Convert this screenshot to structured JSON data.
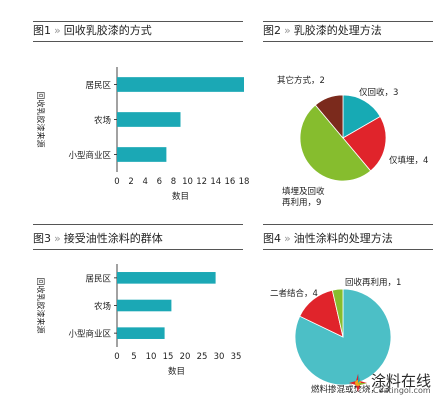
{
  "chart_data": [
    {
      "type": "bar",
      "orientation": "horizontal",
      "title_prefix": "图1",
      "title": "回收乳胶漆的方式",
      "categories": [
        "居民区",
        "农场",
        "小型商业区"
      ],
      "values": [
        18,
        9,
        7
      ],
      "xlabel": "数目",
      "ylabel": "回收乳胶漆来源",
      "xlim": [
        0,
        18
      ],
      "xticks": [
        0,
        2,
        4,
        6,
        8,
        10,
        12,
        14,
        16,
        18
      ],
      "grid": false,
      "color": "#1ba8b5"
    },
    {
      "type": "pie",
      "title_prefix": "图2",
      "title": "乳胶漆的处理方法",
      "slices": [
        {
          "label": "仅回收",
          "value": 3,
          "color": "#17aab4"
        },
        {
          "label": "仅填埋",
          "value": 4,
          "color": "#e0242b"
        },
        {
          "label": "填埋及回收再利用",
          "value": 9,
          "color": "#86bd2e"
        },
        {
          "label": "其它方式",
          "value": 2,
          "color": "#7b2a1c"
        }
      ],
      "slice_labels": [
        "仅回收，3",
        "仅填埋，4",
        "填埋及回收再利用，9",
        "其它方式，2"
      ]
    },
    {
      "type": "bar",
      "orientation": "horizontal",
      "title_prefix": "图3",
      "title": "接受油性涂料的群体",
      "categories": [
        "居民区",
        "农场",
        "小型商业区"
      ],
      "values": [
        29,
        16,
        14
      ],
      "xlabel": "数目",
      "ylabel": "回收乳胶漆来源",
      "xlim": [
        0,
        35
      ],
      "xticks": [
        0,
        5,
        10,
        15,
        20,
        25,
        30,
        35
      ],
      "grid": false,
      "color": "#1ba8b5"
    },
    {
      "type": "pie",
      "title_prefix": "图4",
      "title": "油性涂料的处理方法",
      "slices": [
        {
          "label": "燃料掺混或焚烧",
          "value": 23,
          "color": "#4cbfc6"
        },
        {
          "label": "二者结合",
          "value": 4,
          "color": "#e0242b"
        },
        {
          "label": "回收再利用",
          "value": 1,
          "color": "#86bd2e"
        }
      ],
      "slice_labels": [
        "燃料掺混或焚烧，23",
        "二者结合，4",
        "回收再利用，1"
      ]
    }
  ],
  "watermark": {
    "text": "涂料在线",
    "url": "Coatingol.com"
  }
}
